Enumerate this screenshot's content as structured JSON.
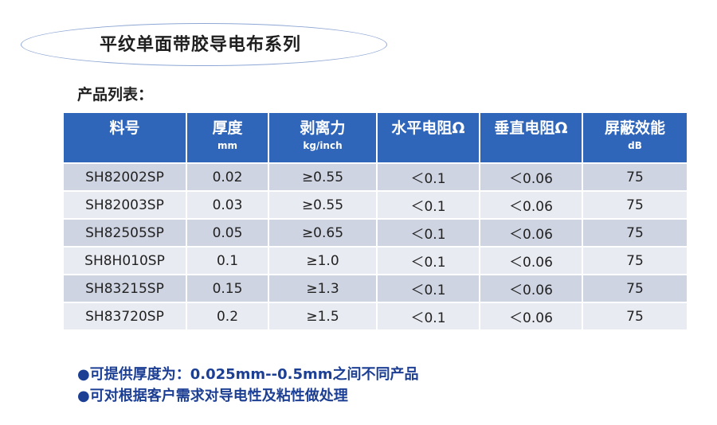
{
  "title": "平纹单面带胶导电布系列",
  "section_label": "产品列表：",
  "table": {
    "headers": [
      {
        "name": "料号",
        "unit": ""
      },
      {
        "name": "厚度",
        "unit": "mm"
      },
      {
        "name": "剥离力",
        "unit": "kg/inch"
      },
      {
        "name": "水平电阻Ω",
        "unit": ""
      },
      {
        "name": "垂直电阻Ω",
        "unit": ""
      },
      {
        "name": "屏蔽效能",
        "unit": "dB"
      }
    ],
    "rows": [
      [
        "SH82002SP",
        "0.02",
        "≥0.55",
        "＜0.1",
        "＜0.06",
        "75"
      ],
      [
        "SH82003SP",
        "0.03",
        "≥0.55",
        "＜0.1",
        "＜0.06",
        "75"
      ],
      [
        "SH82505SP",
        "0.05",
        "≥0.65",
        "＜0.1",
        "＜0.06",
        "75"
      ],
      [
        "SH8H010SP",
        "0.1",
        "≥1.0",
        "＜0.1",
        "＜0.06",
        "75"
      ],
      [
        "SH83215SP",
        "0.15",
        "≥1.3",
        "＜0.1",
        "＜0.06",
        "75"
      ],
      [
        "SH83720SP",
        "0.2",
        "≥1.5",
        "＜0.1",
        "＜0.06",
        "75"
      ]
    ]
  },
  "notes": [
    "●可提供厚度为：0.025mm--0.5mm之间不同产品",
    "●可对根据客户需求对导电性及粘性做处理"
  ],
  "colors": {
    "header_bg": "#3066b9",
    "row_dark": "#cfd4e2",
    "row_light": "#e9ebf2",
    "note_text": "#1c3f94",
    "ellipse_border": "#8ea7d4"
  }
}
